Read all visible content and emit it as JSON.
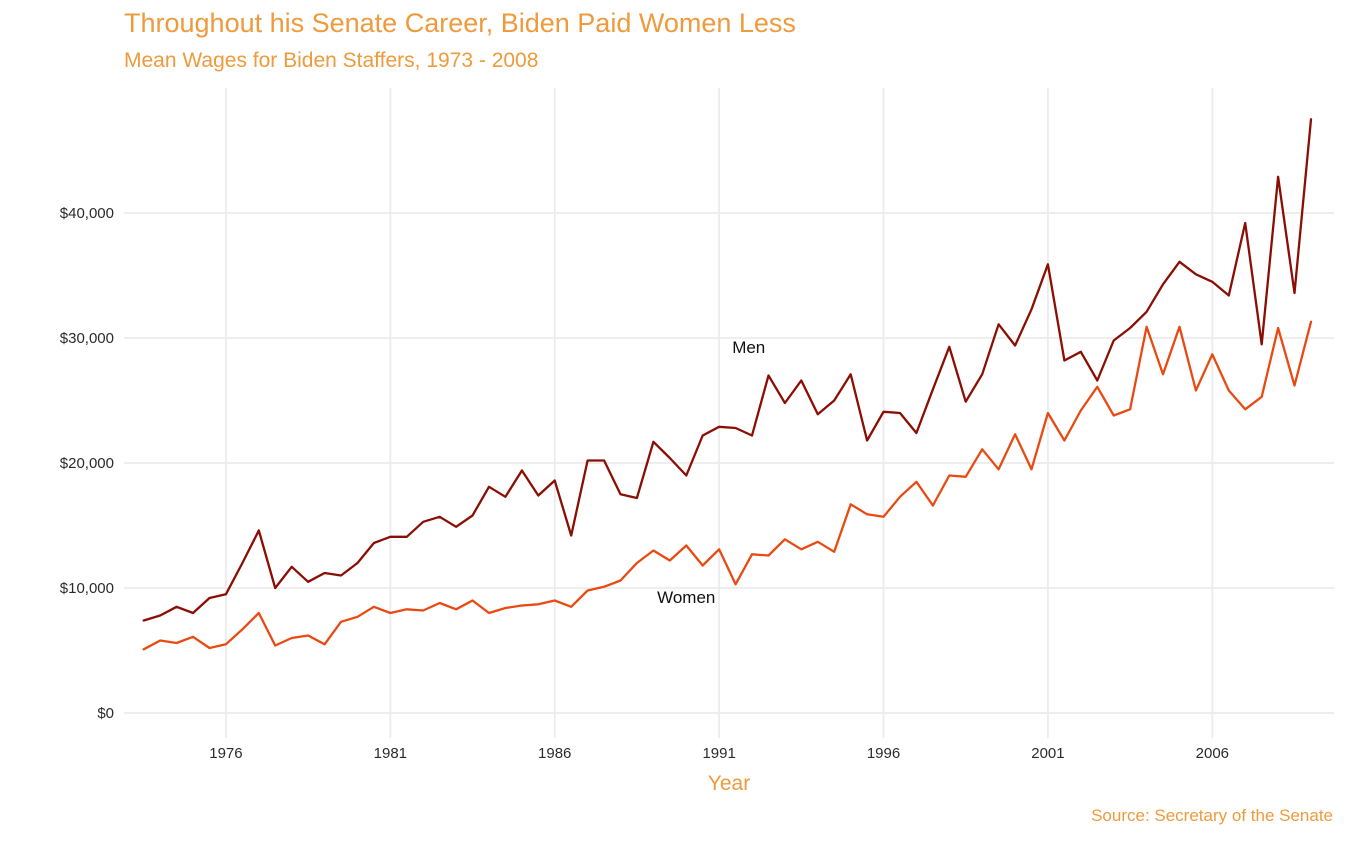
{
  "chart_data": {
    "type": "line",
    "title": "Throughout his Senate Career, Biden Paid Women Less",
    "subtitle": "Mean Wages for Biden Staffers, 1973 - 2008",
    "caption": "Source: Secretary of the Senate",
    "xlabel": "Year",
    "ylabel": "",
    "xlim": [
      1972.9,
      2009.7
    ],
    "ylim": [
      -2000,
      50000
    ],
    "x_ticks": [
      1976,
      1981,
      1986,
      1991,
      1996,
      2001,
      2006
    ],
    "y_ticks": [
      0,
      10000,
      20000,
      30000,
      40000
    ],
    "y_tick_labels": [
      "$0",
      "$10,000",
      "$20,000",
      "$30,000",
      "$40,000"
    ],
    "grid": true,
    "legend": "none",
    "colors": {
      "men": "#8b0e04",
      "women": "#e84a12",
      "accent": "#ef9a3c"
    },
    "x": [
      1973.5,
      1974.0,
      1974.5,
      1975.0,
      1975.5,
      1976.0,
      1976.5,
      1977.0,
      1977.5,
      1978.0,
      1978.5,
      1979.0,
      1979.5,
      1980.0,
      1980.5,
      1981.0,
      1981.5,
      1982.0,
      1982.5,
      1983.0,
      1983.5,
      1984.0,
      1984.5,
      1985.0,
      1985.5,
      1986.0,
      1986.5,
      1987.0,
      1987.5,
      1988.0,
      1988.5,
      1989.0,
      1989.5,
      1990.0,
      1990.5,
      1991.0,
      1991.5,
      1992.0,
      1992.5,
      1993.0,
      1993.5,
      1994.0,
      1994.5,
      1995.0,
      1995.5,
      1996.0,
      1996.5,
      1997.0,
      1997.5,
      1998.0,
      1998.5,
      1999.0,
      1999.5,
      2000.0,
      2000.5,
      2001.0,
      2001.5,
      2002.0,
      2002.5,
      2003.0,
      2003.5,
      2004.0,
      2004.5,
      2005.0,
      2005.5,
      2006.0,
      2006.5,
      2007.0,
      2007.5,
      2008.0,
      2008.5,
      2009.0
    ],
    "series": [
      {
        "name": "Men",
        "color": "#8b0e04",
        "values": [
          7400,
          7800,
          8500,
          8000,
          9200,
          9500,
          12000,
          14600,
          10000,
          11700,
          10500,
          11200,
          11000,
          12000,
          13600,
          14100,
          14100,
          15300,
          15700,
          14900,
          15800,
          18100,
          17300,
          19400,
          17400,
          18600,
          14200,
          20200,
          20200,
          17500,
          17200,
          21700,
          20400,
          19000,
          22200,
          22900,
          22800,
          22200,
          27000,
          24800,
          26600,
          23900,
          25000,
          27100,
          21800,
          24100,
          24000,
          22400,
          25900,
          29300,
          24900,
          27100,
          31100,
          29400,
          32300,
          35900,
          28200,
          28900,
          26600,
          29800,
          30800,
          32100,
          34300,
          36100,
          35100,
          34500,
          33400,
          39200,
          29500,
          42900,
          33600,
          47500
        ]
      },
      {
        "name": "Women",
        "color": "#e84a12",
        "values": [
          5100,
          5800,
          5600,
          6100,
          5200,
          5500,
          6700,
          8000,
          5400,
          6000,
          6200,
          5500,
          7300,
          7700,
          8500,
          8000,
          8300,
          8200,
          8800,
          8300,
          9000,
          8000,
          8400,
          8600,
          8700,
          9000,
          8500,
          9800,
          10100,
          10600,
          12000,
          13000,
          12200,
          13400,
          11800,
          13100,
          10300,
          12700,
          12600,
          13900,
          13100,
          13700,
          12900,
          16700,
          15900,
          15700,
          17300,
          18500,
          16600,
          19000,
          18900,
          21100,
          19500,
          22300,
          19500,
          24000,
          21800,
          24200,
          26100,
          23800,
          24300,
          30900,
          27100,
          30900,
          25800,
          28700,
          25800,
          24300,
          25300,
          30800,
          26200,
          31300
        ]
      }
    ],
    "annotations": [
      {
        "text": "Men",
        "x": 1991.9,
        "y": 28800
      },
      {
        "text": "Women",
        "x": 1990.0,
        "y": 8800
      }
    ]
  }
}
